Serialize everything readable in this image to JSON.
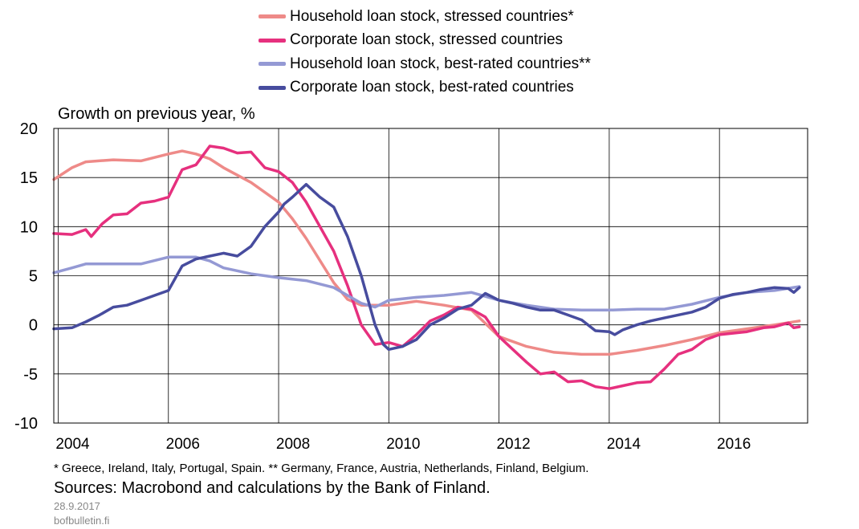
{
  "chart_data": {
    "type": "line",
    "ylabel": "Growth on previous year, %",
    "ylim": [
      -10,
      20
    ],
    "yticks": [
      20,
      15,
      10,
      5,
      0,
      -5,
      -10
    ],
    "xlim": [
      2003.92,
      2017.6
    ],
    "xticks": [
      2004,
      2006,
      2008,
      2010,
      2012,
      2014,
      2016
    ],
    "xtick_labels": [
      "2004",
      "2006",
      "2008",
      "2010",
      "2012",
      "2014",
      "2016"
    ],
    "grid": true,
    "legend_position": "top",
    "series": [
      {
        "name": "Household loan stock, stressed countries*",
        "color": "#ee8a88",
        "x": [
          2003.92,
          2004.25,
          2004.5,
          2005,
          2005.5,
          2006,
          2006.25,
          2006.5,
          2006.75,
          2007,
          2007.5,
          2008,
          2008.25,
          2008.5,
          2009,
          2009.25,
          2009.5,
          2010,
          2010.5,
          2011,
          2011.5,
          2012,
          2012.5,
          2013,
          2013.5,
          2014,
          2014.5,
          2015,
          2015.5,
          2016,
          2016.5,
          2017,
          2017.45
        ],
        "y": [
          14.8,
          16.0,
          16.6,
          16.8,
          16.7,
          17.4,
          17.7,
          17.4,
          16.9,
          16.0,
          14.5,
          12.5,
          10.8,
          8.8,
          4.3,
          2.6,
          2.0,
          2.0,
          2.4,
          2.0,
          1.5,
          -1.2,
          -2.2,
          -2.8,
          -3.0,
          -3.0,
          -2.6,
          -2.1,
          -1.5,
          -0.8,
          -0.4,
          0.0,
          0.4
        ]
      },
      {
        "name": "Corporate loan stock, stressed countries",
        "color": "#e6307e",
        "x": [
          2003.92,
          2004.25,
          2004.5,
          2004.6,
          2004.8,
          2005,
          2005.25,
          2005.5,
          2005.75,
          2006,
          2006.25,
          2006.5,
          2006.75,
          2007,
          2007.25,
          2007.5,
          2007.75,
          2008,
          2008.25,
          2008.5,
          2009,
          2009.25,
          2009.5,
          2009.75,
          2010,
          2010.25,
          2010.5,
          2010.75,
          2011,
          2011.25,
          2011.5,
          2011.75,
          2012,
          2012.25,
          2012.5,
          2012.75,
          2013,
          2013.25,
          2013.5,
          2013.75,
          2014,
          2014.25,
          2014.5,
          2014.75,
          2015,
          2015.25,
          2015.5,
          2015.75,
          2016,
          2016.5,
          2016.8,
          2017,
          2017.25,
          2017.35,
          2017.45
        ],
        "y": [
          9.3,
          9.2,
          9.7,
          9.0,
          10.3,
          11.2,
          11.3,
          12.4,
          12.6,
          13.0,
          15.8,
          16.3,
          18.2,
          18.0,
          17.5,
          17.6,
          16.0,
          15.6,
          14.5,
          12.5,
          7.5,
          4.0,
          0.0,
          -2.0,
          -1.8,
          -2.2,
          -1.0,
          0.4,
          1.0,
          1.8,
          1.6,
          0.8,
          -1.2,
          -2.5,
          -3.8,
          -5.0,
          -4.8,
          -5.8,
          -5.7,
          -6.3,
          -6.5,
          -6.2,
          -5.9,
          -5.8,
          -4.5,
          -3.0,
          -2.5,
          -1.5,
          -1.0,
          -0.7,
          -0.3,
          -0.2,
          0.2,
          -0.3,
          -0.2
        ]
      },
      {
        "name": "Household loan stock, best-rated countries**",
        "color": "#9499d4",
        "x": [
          2003.92,
          2004.25,
          2004.5,
          2005,
          2005.5,
          2006,
          2006.5,
          2006.75,
          2007,
          2007.5,
          2008,
          2008.5,
          2009,
          2009.5,
          2009.75,
          2010,
          2010.5,
          2011,
          2011.5,
          2012,
          2012.5,
          2013,
          2013.5,
          2014,
          2014.5,
          2015,
          2015.5,
          2016,
          2016.5,
          2017,
          2017.45
        ],
        "y": [
          5.3,
          5.8,
          6.2,
          6.2,
          6.2,
          6.9,
          6.9,
          6.5,
          5.8,
          5.2,
          4.8,
          4.5,
          3.8,
          2.2,
          1.8,
          2.5,
          2.8,
          3.0,
          3.3,
          2.5,
          2.0,
          1.6,
          1.5,
          1.5,
          1.6,
          1.6,
          2.1,
          2.8,
          3.3,
          3.5,
          3.9
        ]
      },
      {
        "name": "Corporate loan stock, best-rated countries",
        "color": "#474c9e",
        "x": [
          2003.92,
          2004.25,
          2004.5,
          2004.75,
          2005,
          2005.25,
          2005.5,
          2005.75,
          2006,
          2006.25,
          2006.5,
          2006.75,
          2007,
          2007.25,
          2007.5,
          2007.75,
          2008,
          2008.1,
          2008.25,
          2008.5,
          2008.75,
          2009,
          2009.25,
          2009.5,
          2009.75,
          2009.9,
          2010,
          2010.25,
          2010.5,
          2010.75,
          2011,
          2011.25,
          2011.5,
          2011.75,
          2012,
          2012.25,
          2012.5,
          2012.75,
          2013,
          2013.25,
          2013.5,
          2013.75,
          2014,
          2014.1,
          2014.25,
          2014.5,
          2014.75,
          2015,
          2015.25,
          2015.5,
          2015.75,
          2016,
          2016.25,
          2016.5,
          2016.75,
          2017,
          2017.25,
          2017.35,
          2017.45
        ],
        "y": [
          -0.4,
          -0.3,
          0.3,
          1.0,
          1.8,
          2.0,
          2.5,
          3.0,
          3.5,
          6.0,
          6.7,
          7.0,
          7.3,
          7.0,
          8.0,
          10.0,
          11.5,
          12.3,
          13.0,
          14.3,
          13.0,
          12.0,
          9.0,
          5.0,
          0.0,
          -2.0,
          -2.5,
          -2.2,
          -1.5,
          0.0,
          0.7,
          1.6,
          2.0,
          3.2,
          2.5,
          2.2,
          1.8,
          1.5,
          1.5,
          1.0,
          0.5,
          -0.6,
          -0.7,
          -1.0,
          -0.5,
          0.0,
          0.4,
          0.7,
          1.0,
          1.3,
          1.8,
          2.7,
          3.1,
          3.3,
          3.6,
          3.8,
          3.7,
          3.3,
          3.8
        ]
      }
    ]
  },
  "footnote": "* Greece, Ireland, Italy, Portugal, Spain. ** Germany, France, Austria, Netherlands, Finland,  Belgium.",
  "sources": "Sources: Macrobond and calculations by the Bank of Finland.",
  "date": "28.9.2017",
  "site": "bofbulletin.fi"
}
